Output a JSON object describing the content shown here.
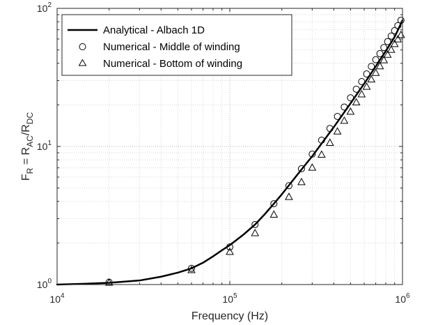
{
  "chart_data": {
    "type": "line",
    "xlabel": "Frequency (Hz)",
    "ylabel": {
      "main": "F",
      "sub1": "R",
      "mid": " = R",
      "sub2": "AC",
      "slash": "/R",
      "sub3": "DC"
    },
    "x_scale": "log",
    "y_scale": "log",
    "xlim": [
      10000,
      1000000
    ],
    "ylim": [
      1,
      100
    ],
    "x_ticks": [
      {
        "base": "10",
        "exp": "4",
        "value": 10000
      },
      {
        "base": "10",
        "exp": "5",
        "value": 100000
      },
      {
        "base": "10",
        "exp": "6",
        "value": 1000000
      }
    ],
    "y_ticks": [
      {
        "base": "10",
        "exp": "0",
        "value": 1
      },
      {
        "base": "10",
        "exp": "1",
        "value": 10
      },
      {
        "base": "10",
        "exp": "2",
        "value": 100
      }
    ],
    "grid": "major-and-minor, dotted",
    "legend_position": "top-left",
    "series": [
      {
        "name": "Analytical - Albach 1D",
        "marker": "line",
        "color": "#000000",
        "x": [
          10000,
          15000,
          20000,
          30000,
          40000,
          50000,
          60000,
          70000,
          80000,
          90000,
          100000,
          120000,
          140000,
          160000,
          180000,
          200000,
          250000,
          300000,
          400000,
          500000,
          600000,
          700000,
          800000,
          900000,
          1000000
        ],
        "values": [
          1.0,
          1.015,
          1.03,
          1.07,
          1.14,
          1.22,
          1.31,
          1.44,
          1.6,
          1.77,
          1.93,
          2.3,
          2.72,
          3.25,
          3.85,
          4.5,
          6.4,
          8.5,
          13.8,
          20.5,
          28.5,
          38.0,
          49.0,
          62.0,
          82.0
        ]
      },
      {
        "name": "Numerical - Middle of winding",
        "marker": "circle",
        "color": "#000000",
        "x": [
          20000,
          60000,
          100000,
          140000,
          180000,
          220000,
          260000,
          300000,
          340000,
          380000,
          420000,
          460000,
          500000,
          540000,
          580000,
          620000,
          660000,
          700000,
          740000,
          780000,
          820000,
          860000,
          900000,
          940000,
          980000
        ],
        "values": [
          1.04,
          1.31,
          1.87,
          2.72,
          3.85,
          5.2,
          6.9,
          8.8,
          11.1,
          13.5,
          16.5,
          19.3,
          22.5,
          26.0,
          29.5,
          33.5,
          38.0,
          42.5,
          47.0,
          52.0,
          57.5,
          63.0,
          69.0,
          75.0,
          82.0
        ]
      },
      {
        "name": "Numerical - Bottom of winding",
        "marker": "triangle",
        "color": "#000000",
        "x": [
          20000,
          60000,
          100000,
          140000,
          180000,
          220000,
          260000,
          300000,
          340000,
          380000,
          420000,
          460000,
          500000,
          540000,
          580000,
          620000,
          660000,
          700000,
          740000,
          780000,
          820000,
          860000,
          900000,
          940000,
          980000
        ],
        "values": [
          1.03,
          1.27,
          1.72,
          2.35,
          3.2,
          4.3,
          5.5,
          7.0,
          8.7,
          10.6,
          12.8,
          15.3,
          17.8,
          20.8,
          23.8,
          27.0,
          30.5,
          34.0,
          38.0,
          42.0,
          46.0,
          50.0,
          55.0,
          59.5,
          64.0
        ]
      }
    ]
  }
}
